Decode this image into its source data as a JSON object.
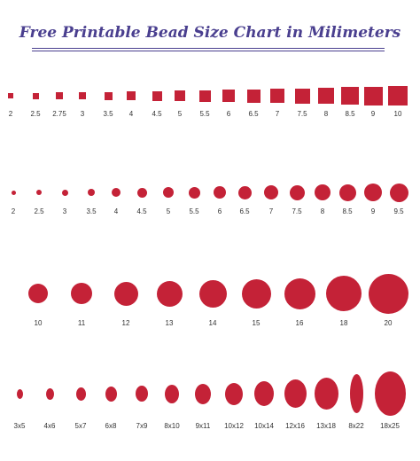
{
  "title": "Free Printable Bead Size Chart in Milimeters",
  "colors": {
    "title": "#4a3f8f",
    "underline": "#4a3f8f",
    "bead": "#c42237",
    "label": "#333333"
  },
  "rows": [
    {
      "shape": "square",
      "labels": [
        "2",
        "2.5",
        "2.75",
        "3",
        "3.5",
        "4",
        "4.5",
        "5",
        "5.5",
        "6",
        "6.5",
        "7",
        "7.5",
        "8",
        "8.5",
        "9",
        "10"
      ]
    },
    {
      "shape": "round",
      "labels": [
        "2",
        "2.5",
        "3",
        "3.5",
        "4",
        "4.5",
        "5",
        "5.5",
        "6",
        "6.5",
        "7",
        "7.5",
        "8",
        "8.5",
        "9",
        "9.5"
      ]
    },
    {
      "shape": "round",
      "labels": [
        "10",
        "11",
        "12",
        "13",
        "14",
        "15",
        "16",
        "18",
        "20"
      ]
    },
    {
      "shape": "oval",
      "labels": [
        "3x5",
        "4x6",
        "5x7",
        "6x8",
        "7x9",
        "8x10",
        "9x11",
        "10x12",
        "10x14",
        "12x16",
        "13x18",
        "8x22",
        "18x25"
      ]
    }
  ]
}
